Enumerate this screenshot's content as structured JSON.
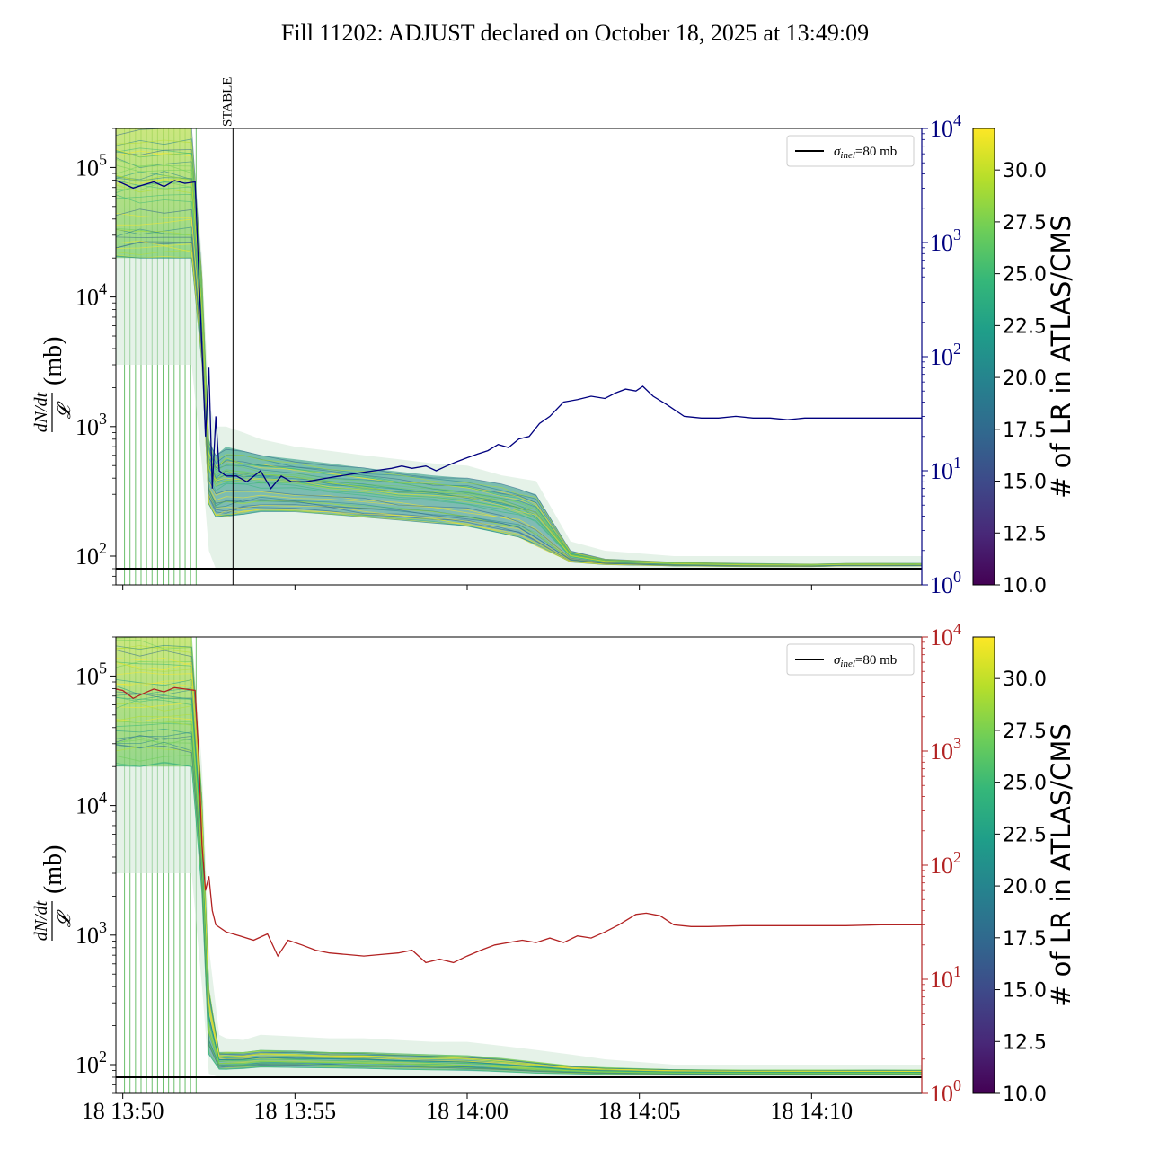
{
  "title": "Fill 11202: ADJUST declared on October 18, 2025 at 13:49:09",
  "colors": {
    "blue_series": "#00007f",
    "red_series": "#b22222",
    "reference": "#000000",
    "viridis": [
      "#440154",
      "#482878",
      "#3e4989",
      "#31688e",
      "#26828e",
      "#1f9e89",
      "#35b779",
      "#6ece58",
      "#b5de2b",
      "#fde725"
    ]
  },
  "chart_data": [
    {
      "type": "line",
      "panel": "top",
      "ylabel": {
        "fraction_num": "dN/dt",
        "fraction_den": "𝓛",
        "unit": "(mb)"
      },
      "yscale": "log",
      "ylim": [
        60,
        200000
      ],
      "yticks": [
        {
          "v": 100,
          "label": "10",
          "exp": "2"
        },
        {
          "v": 1000,
          "label": "10",
          "exp": "3"
        },
        {
          "v": 10000,
          "label": "10",
          "exp": "4"
        },
        {
          "v": 100000,
          "label": "10",
          "exp": "5"
        }
      ],
      "xlim_minutes": [
        49.8,
        73.2
      ],
      "xticks": [],
      "right_axis": {
        "scale": "log",
        "lim": [
          1,
          10000
        ],
        "ticks": [
          {
            "v": 1,
            "label": "10",
            "exp": "0"
          },
          {
            "v": 10,
            "label": "10",
            "exp": "1"
          },
          {
            "v": 100,
            "label": "10",
            "exp": "2"
          },
          {
            "v": 1000,
            "label": "10",
            "exp": "3"
          },
          {
            "v": 10000,
            "label": "10",
            "exp": "4"
          }
        ],
        "color": "#00007f"
      },
      "reference_line": {
        "value": 80,
        "legend_symbol": "σ",
        "legend_sub": "inel",
        "legend_suffix": "=80 mb"
      },
      "annotation": {
        "text": "STABLE",
        "x_minutes": 53.2
      },
      "series": [
        {
          "axis": "right",
          "color": "#00007f",
          "x": [
            49.8,
            50.0,
            50.3,
            50.6,
            50.9,
            51.2,
            51.5,
            51.8,
            52.1,
            52.2,
            52.3,
            52.4,
            52.5,
            52.6,
            52.7,
            52.8,
            53.0,
            53.3,
            53.6,
            54.0,
            54.3,
            54.6,
            54.9,
            55.3,
            55.8,
            56.3,
            56.8,
            57.3,
            57.8,
            58.1,
            58.4,
            58.8,
            59.1,
            59.4,
            59.7,
            60.0,
            60.3,
            60.6,
            60.9,
            61.2,
            61.5,
            61.8,
            62.1,
            62.4,
            62.8,
            63.2,
            63.6,
            64.0,
            64.3,
            64.6,
            64.9,
            65.1,
            65.4,
            65.8,
            66.3,
            66.8,
            67.3,
            67.8,
            68.3,
            68.8,
            69.3,
            69.8,
            70.3,
            70.8,
            71.3,
            71.8,
            72.3,
            72.8,
            73.2
          ],
          "y": [
            3500,
            3300,
            3000,
            3200,
            3400,
            3100,
            3500,
            3300,
            3400,
            600,
            120,
            20,
            80,
            7,
            30,
            10,
            9,
            9,
            8,
            10,
            7,
            9,
            8,
            8,
            8.5,
            9,
            9.5,
            10,
            10.5,
            11,
            10.5,
            11,
            10,
            11,
            12,
            13,
            14,
            15,
            17,
            16,
            19,
            20,
            26,
            30,
            40,
            42,
            45,
            43,
            48,
            52,
            50,
            55,
            45,
            38,
            30,
            29,
            29,
            30,
            29,
            29,
            28,
            29,
            29,
            29,
            29,
            29,
            29,
            29,
            29
          ]
        },
        {
          "type": "band",
          "name": "colored per-bunch curves",
          "x": [
            49.8,
            50.5,
            51.2,
            52.0,
            52.3,
            52.5,
            52.7,
            53.0,
            53.5,
            54.0,
            55.0,
            56.0,
            57.0,
            58.0,
            59.0,
            60.0,
            61.0,
            61.5,
            62.0,
            63.0,
            64.0,
            66.0,
            68.0,
            70.0,
            71.0,
            72.0,
            73.2
          ],
          "upper": [
            200000,
            200000,
            200000,
            200000,
            20000,
            1500,
            1000,
            1000,
            900,
            800,
            700,
            650,
            600,
            560,
            520,
            500,
            420,
            400,
            380,
            130,
            110,
            100,
            100,
            100,
            100,
            100,
            100
          ],
          "lower": [
            3000,
            3000,
            3000,
            3000,
            500,
            110,
            80,
            80,
            80,
            80,
            80,
            80,
            80,
            80,
            80,
            80,
            80,
            80,
            80,
            80,
            80,
            80,
            80,
            80,
            80,
            80,
            80
          ],
          "core_upper": [
            200000,
            200000,
            200000,
            200000,
            15000,
            800,
            600,
            700,
            650,
            600,
            560,
            520,
            480,
            450,
            420,
            400,
            360,
            330,
            300,
            110,
            95,
            90,
            88,
            87,
            88,
            88,
            88
          ],
          "core_lower": [
            20000,
            20000,
            20000,
            20000,
            3000,
            250,
            200,
            200,
            210,
            220,
            220,
            210,
            200,
            190,
            180,
            170,
            150,
            140,
            120,
            90,
            86,
            84,
            83,
            83,
            84,
            84,
            84
          ]
        }
      ]
    },
    {
      "type": "line",
      "panel": "bottom",
      "ylabel": {
        "fraction_num": "dN/dt",
        "fraction_den": "𝓛",
        "unit": "(mb)"
      },
      "yscale": "log",
      "ylim": [
        60,
        200000
      ],
      "yticks": [
        {
          "v": 100,
          "label": "10",
          "exp": "2"
        },
        {
          "v": 1000,
          "label": "10",
          "exp": "3"
        },
        {
          "v": 10000,
          "label": "10",
          "exp": "4"
        },
        {
          "v": 100000,
          "label": "10",
          "exp": "5"
        }
      ],
      "xlim_minutes": [
        49.8,
        73.2
      ],
      "xticks": [
        {
          "v": 50,
          "label": "18 13:50"
        },
        {
          "v": 55,
          "label": "18 13:55"
        },
        {
          "v": 60,
          "label": "18 14:00"
        },
        {
          "v": 65,
          "label": "18 14:05"
        },
        {
          "v": 70,
          "label": "18 14:10"
        }
      ],
      "right_axis": {
        "scale": "log",
        "lim": [
          1,
          10000
        ],
        "ticks": [
          {
            "v": 1,
            "label": "10",
            "exp": "0"
          },
          {
            "v": 10,
            "label": "10",
            "exp": "1"
          },
          {
            "v": 100,
            "label": "10",
            "exp": "2"
          },
          {
            "v": 1000,
            "label": "10",
            "exp": "3"
          },
          {
            "v": 10000,
            "label": "10",
            "exp": "4"
          }
        ],
        "color": "#b22222"
      },
      "reference_line": {
        "value": 80,
        "legend_symbol": "σ",
        "legend_sub": "inel",
        "legend_suffix": "=80 mb"
      },
      "series": [
        {
          "axis": "right",
          "color": "#b22222",
          "x": [
            49.8,
            50.0,
            50.3,
            50.6,
            50.9,
            51.2,
            51.5,
            51.8,
            52.1,
            52.2,
            52.3,
            52.4,
            52.5,
            52.6,
            52.7,
            53.0,
            53.4,
            53.8,
            54.2,
            54.5,
            54.8,
            55.2,
            55.6,
            56.0,
            56.5,
            57.0,
            57.5,
            58.0,
            58.4,
            58.8,
            59.2,
            59.6,
            60.0,
            60.4,
            60.8,
            61.2,
            61.6,
            62.0,
            62.4,
            62.8,
            63.2,
            63.6,
            64.0,
            64.4,
            64.9,
            65.2,
            65.6,
            66.0,
            66.5,
            67.0,
            68.0,
            69.0,
            70.0,
            71.0,
            72.0,
            73.2
          ],
          "y": [
            3500,
            3400,
            2900,
            3200,
            3500,
            3300,
            3600,
            3500,
            3400,
            1000,
            150,
            60,
            80,
            40,
            30,
            26,
            24,
            22,
            25,
            16,
            22,
            20,
            18,
            17,
            16.5,
            16,
            16.5,
            17,
            18,
            14,
            15,
            14,
            16,
            18,
            20,
            21,
            22,
            21,
            23,
            21,
            24,
            23,
            26,
            30,
            37,
            38,
            36,
            30,
            29,
            29,
            29.5,
            29.5,
            29.5,
            29.5,
            30,
            30
          ]
        },
        {
          "type": "band",
          "name": "colored per-bunch curves",
          "x": [
            49.8,
            50.5,
            51.2,
            52.0,
            52.3,
            52.5,
            52.8,
            53.0,
            53.5,
            54.0,
            55.0,
            56.0,
            57.0,
            58.0,
            59.0,
            60.0,
            61.0,
            62.0,
            63.0,
            64.0,
            66.0,
            68.0,
            70.0,
            72.0,
            73.2
          ],
          "upper": [
            200000,
            200000,
            200000,
            200000,
            20000,
            800,
            170,
            160,
            155,
            170,
            165,
            160,
            160,
            155,
            150,
            150,
            140,
            130,
            120,
            110,
            100,
            100,
            100,
            100,
            100
          ],
          "lower": [
            3000,
            3000,
            3000,
            3000,
            400,
            85,
            80,
            80,
            80,
            80,
            80,
            80,
            80,
            80,
            80,
            80,
            80,
            80,
            80,
            80,
            80,
            80,
            80,
            80,
            80
          ],
          "core_upper": [
            200000,
            200000,
            200000,
            200000,
            12000,
            400,
            125,
            125,
            125,
            130,
            128,
            125,
            125,
            122,
            120,
            118,
            112,
            105,
            98,
            95,
            92,
            91,
            91,
            91,
            91
          ],
          "core_lower": [
            20000,
            20000,
            20000,
            20000,
            2000,
            120,
            92,
            92,
            93,
            95,
            95,
            94,
            93,
            92,
            91,
            90,
            88,
            86,
            85,
            84,
            83,
            83,
            83,
            83,
            83
          ]
        }
      ]
    }
  ],
  "colorbar": {
    "label": "# of LR in ATLAS/CMS",
    "range": [
      10.0,
      32.0
    ],
    "ticks": [
      "10.0",
      "12.5",
      "15.0",
      "17.5",
      "20.0",
      "22.5",
      "25.0",
      "27.5",
      "30.0"
    ],
    "tick_values": [
      10.0,
      12.5,
      15.0,
      17.5,
      20.0,
      22.5,
      25.0,
      27.5,
      30.0
    ]
  }
}
